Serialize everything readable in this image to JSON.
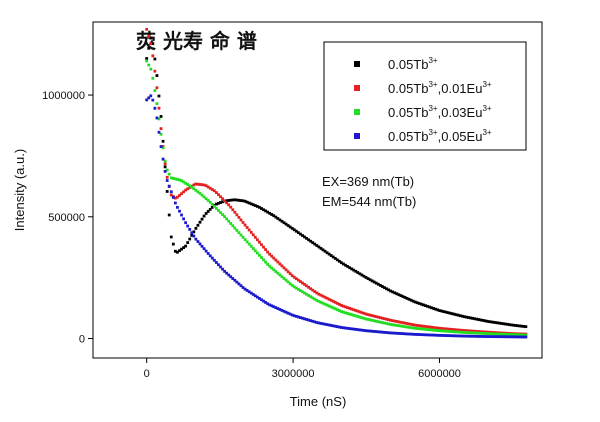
{
  "chart_data": {
    "type": "scatter",
    "title": "荧 光寿 命 谱",
    "xlabel": "Time (nS)",
    "ylabel": "Intensity (a.u.)",
    "xlim": [
      -1100000,
      8100000
    ],
    "ylim": [
      -80000,
      1300000
    ],
    "xticks": [
      0,
      3000000,
      6000000
    ],
    "xtick_labels": [
      "0",
      "3000000",
      "6000000"
    ],
    "yticks": [
      0,
      500000,
      1000000
    ],
    "ytick_labels": [
      "0",
      "500000",
      "1000000"
    ],
    "legend_position": "top-right",
    "annotations": [
      "EX=369 nm(Tb)",
      "EM=544 nm(Tb)"
    ],
    "series": [
      {
        "name": "0.05Tb3+",
        "label_base": "0.05Tb",
        "label_sup": "3+",
        "label_rest": "",
        "label_rest_sup": "",
        "color": "#000000",
        "x": [
          0,
          100000,
          200000,
          300000,
          400000,
          500000,
          600000,
          800000,
          1000000,
          1200000,
          1400000,
          1600000,
          1800000,
          2000000,
          2300000,
          2600000,
          3000000,
          3500000,
          4000000,
          4500000,
          5000000,
          5500000,
          6000000,
          6500000,
          7000000,
          7500000,
          7800000
        ],
        "y": [
          1150000,
          1250000,
          1100000,
          900000,
          650000,
          420000,
          350000,
          380000,
          450000,
          510000,
          550000,
          565000,
          570000,
          565000,
          540000,
          505000,
          450000,
          380000,
          310000,
          250000,
          195000,
          150000,
          115000,
          90000,
          70000,
          55000,
          48000
        ]
      },
      {
        "name": "0.05Tb3+,0.01Eu3+",
        "label_base": "0.05Tb",
        "label_sup": "3+",
        "label_rest": ",0.01Eu",
        "label_rest_sup": "3+",
        "color": "#e52020",
        "x": [
          0,
          100000,
          200000,
          300000,
          400000,
          500000,
          600000,
          800000,
          1000000,
          1200000,
          1400000,
          1700000,
          2000000,
          2500000,
          3000000,
          3500000,
          4000000,
          4500000,
          5000000,
          5500000,
          6000000,
          6500000,
          7000000,
          7500000,
          7800000
        ],
        "y": [
          1270000,
          1200000,
          1050000,
          850000,
          680000,
          590000,
          575000,
          610000,
          635000,
          630000,
          605000,
          545000,
          470000,
          350000,
          255000,
          185000,
          135000,
          100000,
          75000,
          55000,
          42000,
          33000,
          26000,
          20000,
          18000
        ]
      },
      {
        "name": "0.05Tb3+,0.03Eu3+",
        "label_base": "0.05Tb",
        "label_sup": "3+",
        "label_rest": ",0.03Eu",
        "label_rest_sup": "3+",
        "color": "#22dd22",
        "x": [
          0,
          100000,
          200000,
          300000,
          400000,
          500000,
          700000,
          900000,
          1100000,
          1300000,
          1600000,
          2000000,
          2500000,
          3000000,
          3500000,
          4000000,
          4500000,
          5000000,
          5500000,
          6000000,
          6500000,
          7000000,
          7500000,
          7800000
        ],
        "y": [
          1140000,
          1100000,
          980000,
          830000,
          700000,
          660000,
          650000,
          625000,
          595000,
          560000,
          500000,
          410000,
          300000,
          215000,
          155000,
          110000,
          80000,
          58000,
          42000,
          32000,
          25000,
          20000,
          16000,
          14000
        ]
      },
      {
        "name": "0.05Tb3+,0.05Eu3+",
        "label_base": "0.05Tb",
        "label_sup": "3+",
        "label_rest": ",0.05Eu",
        "label_rest_sup": "3+",
        "color": "#1a1acc",
        "x": [
          0,
          100000,
          200000,
          300000,
          400000,
          600000,
          800000,
          1000000,
          1300000,
          1600000,
          2000000,
          2500000,
          3000000,
          3500000,
          4000000,
          4500000,
          5000000,
          5500000,
          6000000,
          6500000,
          7000000,
          7500000,
          7800000
        ],
        "y": [
          980000,
          1000000,
          920000,
          780000,
          660000,
          550000,
          475000,
          410000,
          340000,
          275000,
          205000,
          140000,
          95000,
          65000,
          45000,
          32000,
          23000,
          17000,
          13000,
          10000,
          8000,
          7000,
          6000
        ]
      }
    ]
  }
}
